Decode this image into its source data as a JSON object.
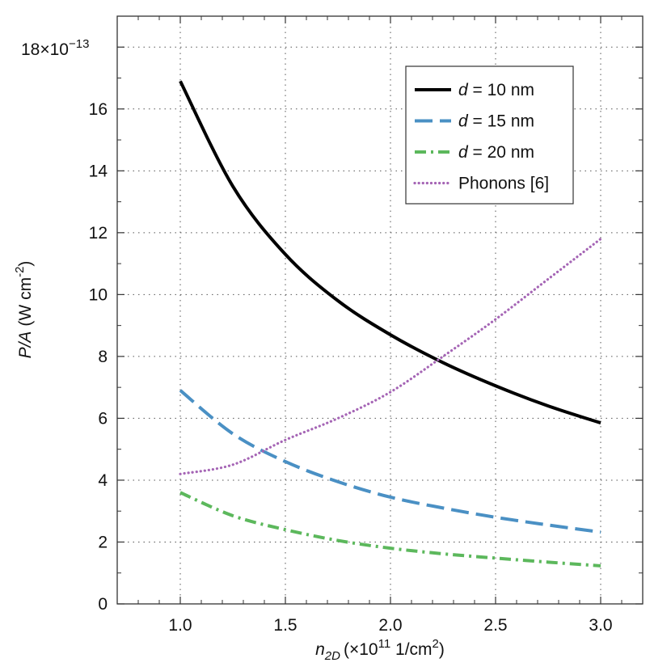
{
  "chart_data": {
    "type": "line",
    "xlabel": {
      "var": "n",
      "sub": "2D",
      "unit": "(×10",
      "exp": "11",
      "unit_tail": " 1/cm",
      "unit_exp": "2",
      "close": ")"
    },
    "ylabel": {
      "var": "P/A",
      "unit": "(W cm",
      "exp": "-2",
      "close": ")"
    },
    "y_multiplier": {
      "base": "18×10",
      "exp": "−13"
    },
    "xlim": [
      0.7,
      3.2
    ],
    "ylim": [
      0,
      19
    ],
    "x_ticks": [
      1.0,
      1.5,
      2.0,
      2.5,
      3.0
    ],
    "x_tick_labels": [
      "1.0",
      "1.5",
      "2.0",
      "2.5",
      "3.0"
    ],
    "y_ticks": [
      0,
      2,
      4,
      6,
      8,
      10,
      12,
      14,
      16
    ],
    "y_tick_labels": [
      "0",
      "2",
      "4",
      "6",
      "8",
      "10",
      "12",
      "14",
      "16"
    ],
    "grid": true,
    "legend_position": "top-right",
    "series": [
      {
        "name_var": "d",
        "name_rest": " = 10 nm",
        "color": "#000000",
        "style": "solid",
        "x": [
          1.0,
          1.25,
          1.5,
          1.75,
          2.0,
          2.25,
          2.5,
          2.75,
          3.0
        ],
        "y": [
          16.9,
          13.5,
          11.3,
          9.8,
          8.7,
          7.8,
          7.05,
          6.4,
          5.85
        ]
      },
      {
        "name_var": "d",
        "name_rest": " = 15 nm",
        "color": "#4a90c4",
        "style": "dashed",
        "x": [
          1.0,
          1.25,
          1.5,
          1.75,
          2.0,
          2.25,
          2.5,
          2.75,
          3.0
        ],
        "y": [
          6.9,
          5.5,
          4.6,
          3.95,
          3.45,
          3.1,
          2.8,
          2.55,
          2.32
        ]
      },
      {
        "name_var": "d",
        "name_rest": " = 20 nm",
        "color": "#5cb85c",
        "style": "dashdot",
        "x": [
          1.0,
          1.25,
          1.5,
          1.75,
          2.0,
          2.25,
          2.5,
          2.75,
          3.0
        ],
        "y": [
          3.6,
          2.85,
          2.4,
          2.05,
          1.8,
          1.62,
          1.48,
          1.35,
          1.23
        ]
      },
      {
        "name_var": "",
        "name_rest": "Phonons [6]",
        "color": "#a565b5",
        "style": "dotted",
        "x": [
          1.0,
          1.25,
          1.5,
          1.75,
          2.0,
          2.25,
          2.5,
          2.75,
          3.0
        ],
        "y": [
          4.2,
          4.5,
          5.3,
          6.0,
          6.85,
          8.0,
          9.2,
          10.5,
          11.8
        ]
      }
    ]
  }
}
